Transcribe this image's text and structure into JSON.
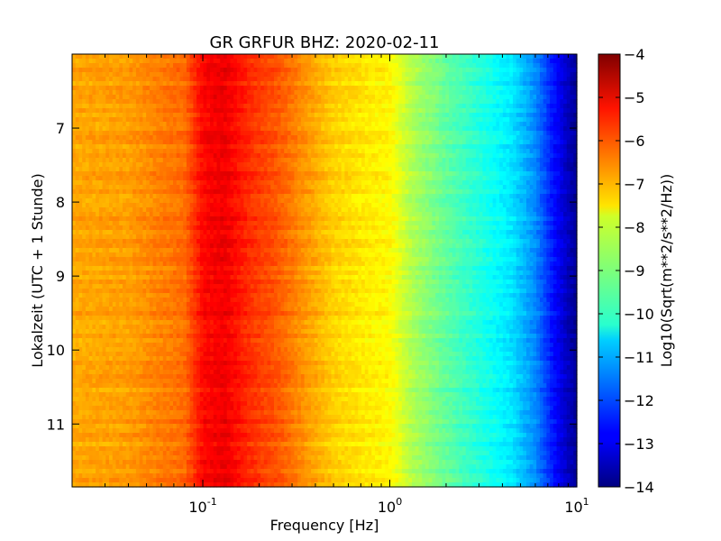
{
  "chart_data": {
    "type": "heatmap",
    "title": "GR GRFUR BHZ: 2020-02-11",
    "xlabel": "Frequency [Hz]",
    "ylabel": "Lokalzeit (UTC + 1 Stunde)",
    "colorbar_label": "Log10(Sqrt(m**2/s**2/Hz))",
    "x_scale": "log",
    "x_range": [
      0.02,
      10
    ],
    "y_range": [
      6,
      11.85
    ],
    "y_inverted": true,
    "c_range": [
      -14,
      -4
    ],
    "colormap": "jet",
    "x_ticks": [
      {
        "value": 0.1,
        "base": "10",
        "exp": "-1"
      },
      {
        "value": 1,
        "base": "10",
        "exp": "0"
      },
      {
        "value": 10,
        "base": "10",
        "exp": "1"
      }
    ],
    "y_ticks": [
      "7",
      "8",
      "9",
      "10",
      "11"
    ],
    "c_ticks": [
      "-4",
      "-5",
      "-6",
      "-7",
      "-8",
      "-9",
      "-10",
      "-11",
      "-12",
      "-13",
      "-14"
    ],
    "spectrum_profile": [
      {
        "f": 0.02,
        "level": -6.9
      },
      {
        "f": 0.04,
        "level": -6.8
      },
      {
        "f": 0.06,
        "level": -6.5
      },
      {
        "f": 0.08,
        "level": -6.3
      },
      {
        "f": 0.1,
        "level": -5.3
      },
      {
        "f": 0.13,
        "level": -5.1
      },
      {
        "f": 0.18,
        "level": -5.7
      },
      {
        "f": 0.25,
        "level": -6.1
      },
      {
        "f": 0.35,
        "level": -6.7
      },
      {
        "f": 0.5,
        "level": -7.3
      },
      {
        "f": 0.8,
        "level": -7.6
      },
      {
        "f": 1.0,
        "level": -7.7
      },
      {
        "f": 1.3,
        "level": -8.5
      },
      {
        "f": 2.0,
        "level": -9.3
      },
      {
        "f": 3.0,
        "level": -9.9
      },
      {
        "f": 4.5,
        "level": -10.5
      },
      {
        "f": 6.0,
        "level": -11.4
      },
      {
        "f": 7.5,
        "level": -12.6
      },
      {
        "f": 9.0,
        "level": -13.4
      },
      {
        "f": 10,
        "level": -13.8
      }
    ]
  }
}
